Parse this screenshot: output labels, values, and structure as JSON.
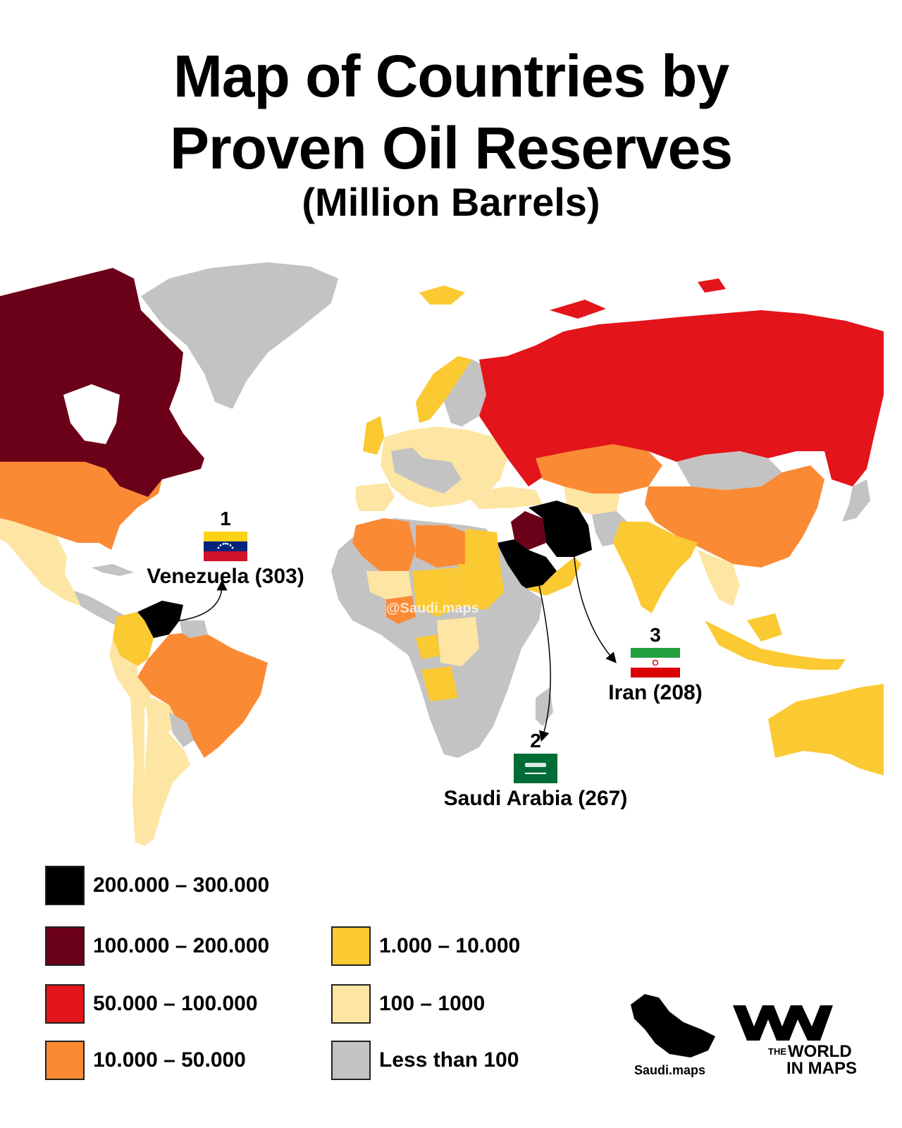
{
  "title": {
    "line1": "Map of Countries by",
    "line2": "Proven Oil Reserves",
    "line3": "(Million Barrels)"
  },
  "colors": {
    "c200_300": "#000000",
    "c100_200": "#6b0019",
    "c50_100": "#e3141a",
    "c10_50": "#fb8a35",
    "c1_10": "#fbc932",
    "c100_1000": "#fde5a3",
    "lt100": "#c3c3c3"
  },
  "callouts": [
    {
      "rank": "1",
      "name": "Venezuela (303)",
      "flag": "venezuela-flag"
    },
    {
      "rank": "2",
      "name": "Saudi Arabia (267)",
      "flag": "saudi-arabia-flag"
    },
    {
      "rank": "3",
      "name": "Iran (208)",
      "flag": "iran-flag"
    }
  ],
  "legend": [
    {
      "label": "200.000 – 300.000",
      "color": "#000000"
    },
    {
      "label": "100.000 – 200.000",
      "color": "#6b0019"
    },
    {
      "label": "50.000 – 100.000",
      "color": "#e3141a"
    },
    {
      "label": "10.000 – 50.000",
      "color": "#fb8a35"
    },
    {
      "label": "1.000 – 10.000",
      "color": "#fbc932"
    },
    {
      "label": "100 – 1000",
      "color": "#fde5a3"
    },
    {
      "label": "Less than 100",
      "color": "#c3c3c3"
    }
  ],
  "watermark": "@Saudi.maps",
  "credits": {
    "saudi_maps": "Saudi.maps",
    "world_in_maps_the": "THE",
    "world_in_maps_1": "WORLD",
    "world_in_maps_2": "IN MAPS"
  }
}
